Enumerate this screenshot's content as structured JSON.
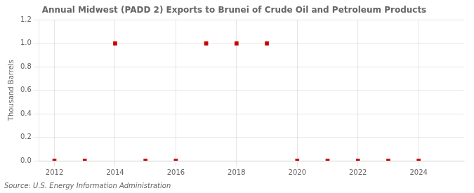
{
  "chart_data": {
    "type": "scatter",
    "title": "Annual Midwest (PADD 2) Exports to Brunei of Crude Oil and Petroleum Products",
    "ylabel": "Thousand Barrels",
    "annotations": [
      "Source: U.S. Energy Information Administration"
    ],
    "x": [
      2012,
      2013,
      2014,
      2015,
      2016,
      2017,
      2018,
      2019,
      2020,
      2021,
      2022,
      2023,
      2024
    ],
    "values": [
      0,
      0,
      1,
      0,
      0,
      1,
      1,
      1,
      0,
      0,
      0,
      0,
      0
    ],
    "color": "#cc0000",
    "marker": "square",
    "xlim": [
      2011.5,
      2025.5
    ],
    "ylim": [
      0.0,
      1.2
    ],
    "xticks": [
      2012,
      2014,
      2016,
      2018,
      2020,
      2022,
      2024
    ],
    "yticks": [
      {
        "value": 0,
        "label": "0.0"
      },
      0.2,
      0.4,
      0.6,
      0.8,
      {
        "value": 1,
        "label": "1.0"
      },
      1.2
    ],
    "grid": true
  }
}
